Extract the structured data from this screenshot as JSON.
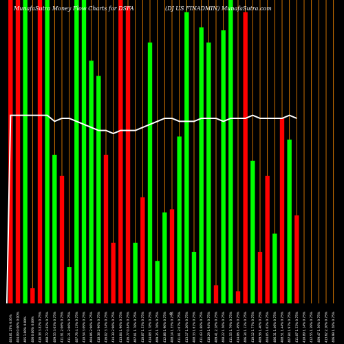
{
  "chart_data": {
    "type": "bar",
    "title_left": "MunafaSutra  Money Flow  Charts for DSFA",
    "title_right": "(DJ US FINADMIN) MunafaSutra.com",
    "center_label": "0",
    "ylim": [
      0,
      100
    ],
    "colors": {
      "background": "#000000",
      "up": "#00ff00",
      "down": "#ff0000",
      "grid": "#ff8c00",
      "line": "#ffffff"
    },
    "categories": [
      "403.81 27% 6.05%",
      "404.09 0.00% 0.00%",
      "405 1.00% 0.00%",
      "406 0.00% 0.00%",
      "410.38 3.82% 0.75%",
      "408.72 3.82% 0.75%",
      "409.55 3.03% 0.75%",
      "411.91 2.06% 0.75%",
      "411.21 2.06% 0.75%",
      "407.76 4.13% 0.75%",
      "410.54 3.09% 0.75%",
      "404.06 2.96% 0.75%",
      "418.38 2.96% 0.75%",
      "416.02 3.34% 0.75%",
      "414.39 2.96% 0.75%",
      "413.84 1.96% 0.75%",
      "416.77 0.84% 0.75%",
      "407.01 1.78% 0.75%",
      "410.87 1.53% 0.75%",
      "414.08 1.78% 0.75%",
      "409.35 1.76% 0.75%",
      "412.86 1.90% 0.75%",
      "408.14 1.55% 0.75%",
      "411.01 2.07% 0.75%",
      "413.17 1.20% 0.75%",
      "408.33 1.61% 0.75%",
      "411.43 1.88% 0.75%",
      "410.29 1.94% 0.75%",
      "409.41 2.28% 0.75%",
      "408.22 1.56% 0.75%",
      "411.55 1.79% 0.75%",
      "414.06 1.49% 0.75%",
      "406.34 1.13% 0.75%",
      "410.12 1.77% 0.75%",
      "409.56 1.40% 0.75%",
      "404.05 1.02% 0.75%",
      "406.31 1.46% 0.75%",
      "408.51 1.44% 0.75%",
      "407.84 1.97% 0.75%",
      "411.07 1.33% 0.75%",
      "410.89 1.14% 0.75%",
      "412.55 1.39% 0.75%",
      "409.47 1.56% 0.75%",
      "413.62 2.20% 0.75%",
      "406.99 1.58% 0.75%"
    ],
    "bar_directions": [
      "down",
      "down",
      "up",
      "down",
      "down",
      "up",
      "up",
      "down",
      "up",
      "up",
      "up",
      "up",
      "up",
      "down",
      "down",
      "down",
      "down",
      "up",
      "down",
      "up",
      "up",
      "up",
      "down",
      "up",
      "up",
      "up",
      "up",
      "up",
      "down",
      "up",
      "up",
      "down",
      "down",
      "up",
      "down",
      "down",
      "up",
      "down",
      "up",
      "down",
      "up",
      "up",
      "down",
      "up",
      "up"
    ],
    "values": [
      100,
      100,
      100,
      5,
      100,
      100,
      49,
      42,
      12,
      100,
      100,
      80,
      75,
      49,
      20,
      100,
      98,
      20,
      35,
      86,
      14,
      30,
      31,
      55,
      96,
      17,
      91,
      86,
      6,
      90,
      100,
      4,
      96,
      47,
      17,
      42,
      23,
      61,
      54,
      29,
      0,
      0,
      0,
      0,
      0
    ],
    "series": [
      {
        "values": [
          62,
          62,
          62,
          62,
          62,
          62,
          60,
          61,
          61,
          60,
          59,
          58,
          57,
          57,
          56,
          57,
          57,
          57,
          58,
          59,
          60,
          61,
          61,
          60,
          60,
          60,
          61,
          61,
          61,
          60,
          61,
          61,
          61,
          62,
          61,
          61,
          61,
          61,
          62,
          61,
          0,
          0,
          0,
          0,
          0
        ]
      }
    ]
  }
}
